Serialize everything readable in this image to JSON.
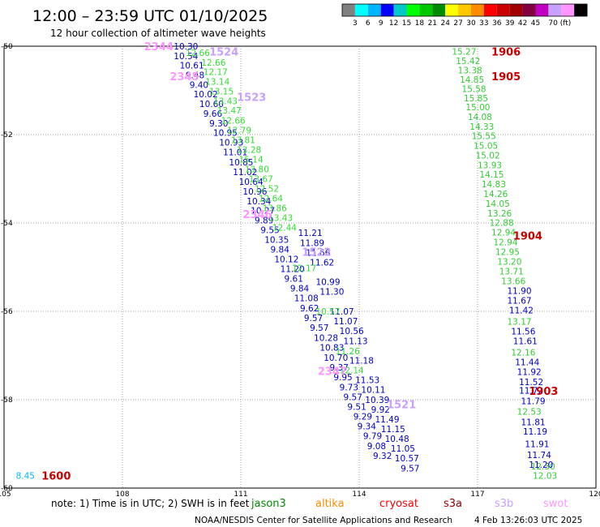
{
  "header": {
    "title": "12:00 – 23:59 UTC 01/10/2025",
    "subtitle": "12 hour collection of altimeter wave heights"
  },
  "colorbar": {
    "colors": [
      "#808080",
      "#00ffff",
      "#00b4ff",
      "#0000ff",
      "#00c8c8",
      "#00ff00",
      "#00c800",
      "#008c00",
      "#ffff00",
      "#ffc800",
      "#ff8c00",
      "#ff0000",
      "#c80000",
      "#a00000",
      "#800040",
      "#c000c0",
      "#c8a0ff",
      "#ff96ff",
      "#000000"
    ],
    "labels": [
      "3",
      "6",
      "9",
      "12",
      "15",
      "18",
      "21",
      "24",
      "27",
      "30",
      "33",
      "36",
      "39",
      "42",
      "45",
      "70 (ft)"
    ]
  },
  "footer": {
    "note": "note: 1) Time is in UTC; 2) SWH is in feet",
    "credit": "NOAA/NESDIS Center for Satellite Applications and Research",
    "timestamp": "4 Feb 13:26:03 UTC 2025",
    "satellites": [
      {
        "name": "jason3",
        "color": "#008c00"
      },
      {
        "name": "altika",
        "color": "#ff8c00"
      },
      {
        "name": "cryosat",
        "color": "#ff0000"
      },
      {
        "name": "s3a",
        "color": "#a00000"
      },
      {
        "name": "s3b",
        "color": "#c8a0ff"
      },
      {
        "name": "swot",
        "color": "#ff96ff"
      }
    ]
  },
  "chart_data": {
    "type": "scatter",
    "title": "12:00 – 23:59 UTC 01/10/2025",
    "subtitle": "12 hour collection of altimeter wave heights",
    "xlabel": "",
    "ylabel": "",
    "xlim": [
      105,
      120
    ],
    "ylim": [
      -60,
      -50
    ],
    "x_ticks": [
      "105",
      "108",
      "111",
      "114",
      "117",
      "120"
    ],
    "y_ticks": [
      "-50",
      "-52",
      "-54",
      "-56",
      "-58",
      "-60"
    ],
    "grid": true,
    "track_labels": [
      {
        "text": "1906",
        "lon": 117.35,
        "lat": -50.12,
        "color": "#c80000"
      },
      {
        "text": "1905",
        "lon": 117.35,
        "lat": -50.68,
        "color": "#c80000"
      },
      {
        "text": "1904",
        "lon": 117.9,
        "lat": -54.28,
        "color": "#c80000"
      },
      {
        "text": "1903",
        "lon": 118.3,
        "lat": -57.8,
        "color": "#c80000"
      },
      {
        "text": "1600",
        "lon": 105.95,
        "lat": -59.72,
        "color": "#c80000"
      },
      {
        "text": "2344",
        "lon": 108.55,
        "lat": -50.0,
        "color": "#ff96ff"
      },
      {
        "text": "2345",
        "lon": 109.2,
        "lat": -50.68,
        "color": "#ff96ff"
      },
      {
        "text": "2346",
        "lon": 111.05,
        "lat": -53.8,
        "color": "#ff96ff"
      },
      {
        "text": "2347",
        "lon": 112.95,
        "lat": -57.35,
        "color": "#ff96ff"
      },
      {
        "text": "1524",
        "lon": 110.2,
        "lat": -50.12,
        "color": "#c8a0ff"
      },
      {
        "text": "1523",
        "lon": 110.9,
        "lat": -51.15,
        "color": "#c8a0ff"
      },
      {
        "text": "1522",
        "lon": 112.55,
        "lat": -54.65,
        "color": "#c8a0ff"
      },
      {
        "text": "1521",
        "lon": 114.7,
        "lat": -58.1,
        "color": "#c8a0ff"
      }
    ],
    "series": [
      {
        "color": "#0000cc",
        "points": [
          [
            109.3,
            -50.0,
            "10.30"
          ],
          [
            109.3,
            -50.22,
            "10.54"
          ],
          [
            109.45,
            -50.43,
            "10.61"
          ],
          [
            109.6,
            -50.65,
            "9.48"
          ],
          [
            109.7,
            -50.87,
            "9.40"
          ],
          [
            109.8,
            -51.08,
            "10.02"
          ],
          [
            109.95,
            -51.3,
            "10.60"
          ],
          [
            110.05,
            -51.52,
            "9.66"
          ],
          [
            110.2,
            -51.74,
            "9.30"
          ],
          [
            110.3,
            -51.95,
            "10.95"
          ],
          [
            110.45,
            -52.17,
            "10.93"
          ],
          [
            110.55,
            -52.39,
            "11.01"
          ],
          [
            110.7,
            -52.62,
            "10.85"
          ],
          [
            110.8,
            -52.84,
            "11.02"
          ],
          [
            110.95,
            -53.06,
            "10.64"
          ],
          [
            111.05,
            -53.28,
            "10.96"
          ],
          [
            111.15,
            -53.5,
            "10.34"
          ],
          [
            111.25,
            -53.72,
            "10.27"
          ],
          [
            111.35,
            -53.94,
            "9.89"
          ],
          [
            111.5,
            -54.16,
            "9.55"
          ],
          [
            111.6,
            -54.38,
            "10.35"
          ],
          [
            111.75,
            -54.6,
            "9.84"
          ],
          [
            111.85,
            -54.82,
            "10.12"
          ],
          [
            112.0,
            -55.04,
            "11.20"
          ],
          [
            112.1,
            -55.26,
            "9.61"
          ],
          [
            112.25,
            -55.48,
            "9.84"
          ],
          [
            112.35,
            -55.7,
            "11.08"
          ],
          [
            112.5,
            -55.93,
            "9.62"
          ],
          [
            112.6,
            -56.15,
            "9.57"
          ],
          [
            112.75,
            -56.37,
            "9.57"
          ],
          [
            112.85,
            -56.6,
            "10.28"
          ],
          [
            113.0,
            -56.82,
            "10.83"
          ],
          [
            113.1,
            -57.05,
            "10.70"
          ],
          [
            113.25,
            -57.27,
            "9.37"
          ],
          [
            113.35,
            -57.49,
            "9.95"
          ],
          [
            113.5,
            -57.72,
            "9.73"
          ],
          [
            113.6,
            -57.94,
            "9.57"
          ],
          [
            113.7,
            -58.16,
            "9.51"
          ],
          [
            113.85,
            -58.38,
            "9.29"
          ],
          [
            113.95,
            -58.6,
            "9.34"
          ],
          [
            114.1,
            -58.82,
            "9.79"
          ],
          [
            114.2,
            -59.05,
            "9.08"
          ],
          [
            114.35,
            -59.27,
            "9.32"
          ]
        ]
      },
      {
        "color": "#0000cc",
        "points": [
          [
            112.45,
            -54.22,
            "11.21"
          ],
          [
            112.5,
            -54.45,
            "11.89"
          ],
          [
            112.65,
            -54.67,
            "11.66"
          ],
          [
            112.75,
            -54.89,
            "11.62"
          ],
          [
            112.9,
            -55.33,
            "10.99"
          ],
          [
            113.0,
            -55.55,
            "11.30"
          ],
          [
            113.25,
            -56.0,
            "11.07"
          ],
          [
            113.35,
            -56.22,
            "11.07"
          ],
          [
            113.5,
            -56.44,
            "10.56"
          ],
          [
            113.6,
            -56.67,
            "11.13"
          ],
          [
            113.75,
            -57.11,
            "11.18"
          ],
          [
            113.9,
            -57.55,
            "11.53"
          ],
          [
            114.05,
            -57.77,
            "10.11"
          ],
          [
            114.15,
            -58.0,
            "10.39"
          ],
          [
            114.3,
            -58.22,
            "9.92"
          ],
          [
            114.4,
            -58.44,
            "11.49"
          ],
          [
            114.55,
            -58.66,
            "11.15"
          ],
          [
            114.65,
            -58.88,
            "10.48"
          ],
          [
            114.8,
            -59.1,
            "11.05"
          ],
          [
            114.9,
            -59.32,
            "10.57"
          ],
          [
            115.05,
            -59.55,
            "9.57"
          ]
        ]
      },
      {
        "color": "#33dd33",
        "points": [
          [
            109.6,
            -50.15,
            "12.66"
          ],
          [
            110.0,
            -50.37,
            "12.66"
          ],
          [
            110.05,
            -50.58,
            "12.17"
          ],
          [
            110.1,
            -50.8,
            "13.14"
          ],
          [
            110.2,
            -51.02,
            "13.15"
          ],
          [
            110.3,
            -51.24,
            "13.43"
          ],
          [
            110.4,
            -51.45,
            "13.47"
          ],
          [
            110.5,
            -51.68,
            "12.66"
          ],
          [
            110.65,
            -51.9,
            "12.79"
          ],
          [
            110.75,
            -52.12,
            "13.81"
          ],
          [
            110.9,
            -52.34,
            "13.28"
          ],
          [
            110.95,
            -52.56,
            "15.14"
          ],
          [
            111.1,
            -52.78,
            "13.80"
          ],
          [
            111.2,
            -53.0,
            "13.67"
          ],
          [
            111.35,
            -53.22,
            "12.52"
          ],
          [
            111.45,
            -53.44,
            "12.64"
          ],
          [
            111.55,
            -53.66,
            "13.86"
          ],
          [
            111.7,
            -53.88,
            "13.43"
          ],
          [
            111.8,
            -54.1,
            "12.44"
          ],
          [
            112.3,
            -55.02,
            "12.17"
          ],
          [
            112.9,
            -56.0,
            "10.57"
          ],
          [
            113.4,
            -56.9,
            "11.26"
          ],
          [
            113.5,
            -57.33,
            "12.14"
          ]
        ]
      },
      {
        "color": "#33cc33",
        "points": [
          [
            116.35,
            -50.12,
            "15.27"
          ],
          [
            116.45,
            -50.33,
            "15.42"
          ],
          [
            116.5,
            -50.54,
            "13.38"
          ],
          [
            116.55,
            -50.75,
            "14.85"
          ],
          [
            116.6,
            -50.96,
            "15.58"
          ],
          [
            116.65,
            -51.17,
            "15.85"
          ],
          [
            116.7,
            -51.38,
            "15.00"
          ],
          [
            116.75,
            -51.6,
            "14.08"
          ],
          [
            116.8,
            -51.82,
            "14.33"
          ],
          [
            116.85,
            -52.03,
            "15.55"
          ],
          [
            116.9,
            -52.25,
            "15.05"
          ],
          [
            116.95,
            -52.47,
            "15.02"
          ],
          [
            117.0,
            -52.69,
            "13.93"
          ],
          [
            117.05,
            -52.9,
            "14.15"
          ],
          [
            117.1,
            -53.12,
            "14.83"
          ],
          [
            117.15,
            -53.34,
            "14.26"
          ],
          [
            117.2,
            -53.56,
            "14.05"
          ],
          [
            117.25,
            -53.78,
            "13.26"
          ],
          [
            117.3,
            -53.99,
            "12.88"
          ],
          [
            117.35,
            -54.21,
            "12.94"
          ],
          [
            117.4,
            -54.43,
            "12.94"
          ],
          [
            117.45,
            -54.65,
            "12.95"
          ],
          [
            117.5,
            -54.87,
            "13.20"
          ],
          [
            117.55,
            -55.09,
            "13.71"
          ],
          [
            117.6,
            -55.31,
            "13.66"
          ],
          [
            117.75,
            -56.23,
            "13.17"
          ],
          [
            117.85,
            -56.93,
            "12.16"
          ],
          [
            118.0,
            -58.27,
            "12.53"
          ],
          [
            118.35,
            -59.5,
            "12.30"
          ],
          [
            118.4,
            -59.72,
            "12.03"
          ]
        ]
      },
      {
        "color": "#0000cc",
        "points": [
          [
            117.75,
            -55.53,
            "11.90"
          ],
          [
            117.75,
            -55.75,
            "11.67"
          ],
          [
            117.8,
            -55.97,
            "11.42"
          ],
          [
            117.85,
            -56.45,
            "11.56"
          ],
          [
            117.9,
            -56.67,
            "11.61"
          ],
          [
            117.95,
            -57.15,
            "11.44"
          ],
          [
            118.0,
            -57.37,
            "11.92"
          ],
          [
            118.05,
            -57.6,
            "11.52"
          ],
          [
            118.05,
            -57.79,
            "11.72"
          ],
          [
            118.1,
            -58.03,
            "11.79"
          ],
          [
            118.1,
            -58.5,
            "11.81"
          ],
          [
            118.15,
            -58.72,
            "11.19"
          ],
          [
            118.2,
            -59.0,
            "11.91"
          ],
          [
            118.25,
            -59.25,
            "11.74"
          ],
          [
            118.3,
            -59.47,
            "11.20"
          ]
        ]
      },
      {
        "color": "#00b4ff",
        "points": [
          [
            105.3,
            -59.72,
            "8.45"
          ]
        ]
      }
    ]
  }
}
